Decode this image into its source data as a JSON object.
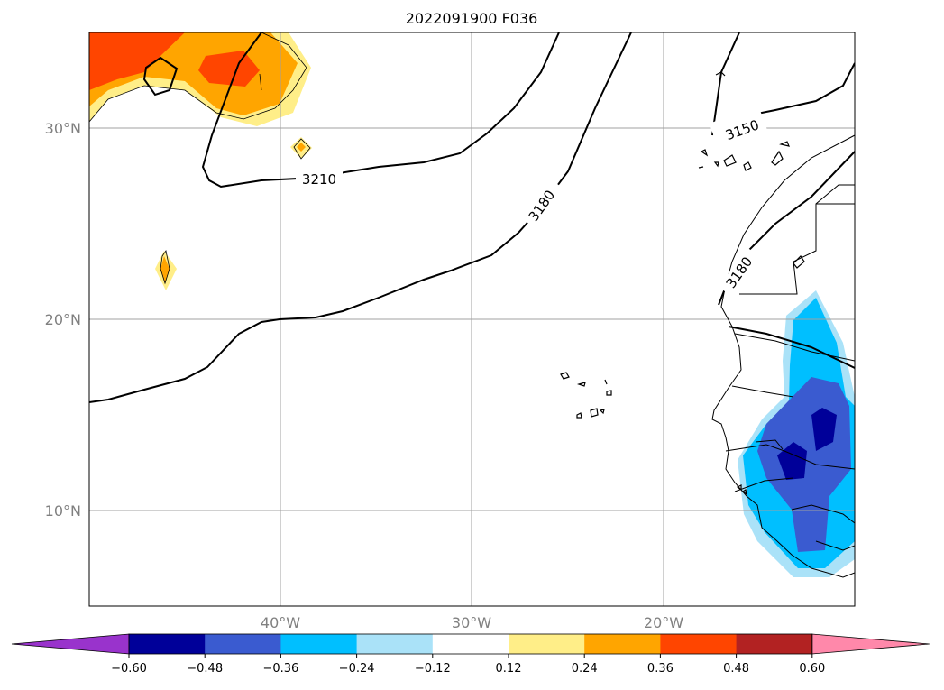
{
  "title": "2022091900 F036",
  "map": {
    "lat_labels": [
      "30°N",
      "20°N",
      "10°N"
    ],
    "lon_labels": [
      "40°W",
      "30°W",
      "20°W"
    ],
    "lat_values": [
      30,
      20,
      10
    ],
    "lon_values": [
      -40,
      -30,
      -20
    ],
    "extent": {
      "lon": [
        -50,
        -10
      ],
      "lat": [
        5,
        35
      ]
    },
    "gridlines": true,
    "coastlines": true,
    "borders": true
  },
  "contours": {
    "color": "#000000",
    "labels": [
      "3210",
      "3180",
      "3150",
      "3180"
    ]
  },
  "colorbar": {
    "ticks": [
      "−0.60",
      "−0.48",
      "−0.36",
      "−0.24",
      "−0.12",
      "0.12",
      "0.24",
      "0.36",
      "0.48",
      "0.60"
    ],
    "colors": [
      "#9933cc",
      "#000099",
      "#3a5bd0",
      "#00bfff",
      "#aae2f8",
      "#ffffff",
      "#ffee88",
      "#ffa500",
      "#ff4500",
      "#b22222",
      "#ff88aa"
    ],
    "extend": "both"
  }
}
